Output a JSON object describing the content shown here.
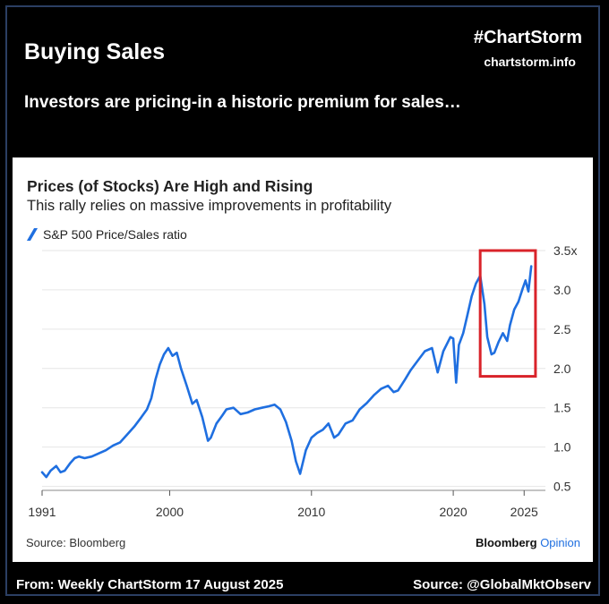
{
  "header": {
    "title": "Buying Sales",
    "tag": "#ChartStorm",
    "site": "chartstorm.info",
    "subtitle": "Investors are pricing-in a historic premium for sales…"
  },
  "footer": {
    "left": "From: Weekly ChartStorm 17 August 2025",
    "right": "Source: @GlobalMktObserv"
  },
  "source_note": "Source: Bloomberg",
  "brand": {
    "name": "Bloomberg",
    "suffix": "Opinion"
  },
  "colors": {
    "line": "#1f6fe0",
    "highlight": "#d9232a",
    "grid": "#e6e6e6"
  },
  "chart_data": {
    "type": "line",
    "title": "Prices (of Stocks) Are High and Rising",
    "subtitle": "This rally relies on massive improvements in profitability",
    "legend": "S&P 500 Price/Sales ratio",
    "xlabel": "",
    "ylabel": "",
    "xlim": [
      1991,
      2026.5
    ],
    "ylim": [
      0.45,
      3.5
    ],
    "y_ticks": [
      {
        "value": 3.5,
        "label": "3.5x"
      },
      {
        "value": 3.0,
        "label": "3.0"
      },
      {
        "value": 2.5,
        "label": "2.5"
      },
      {
        "value": 2.0,
        "label": "2.0"
      },
      {
        "value": 1.5,
        "label": "1.5"
      },
      {
        "value": 1.0,
        "label": "1.0"
      },
      {
        "value": 0.5,
        "label": "0.5"
      }
    ],
    "x_ticks": [
      {
        "value": 1991,
        "label": "1991"
      },
      {
        "value": 2000,
        "label": "2000"
      },
      {
        "value": 2010,
        "label": "2010"
      },
      {
        "value": 2020,
        "label": "2020"
      },
      {
        "value": 2025,
        "label": "2025"
      }
    ],
    "highlight": {
      "x": [
        2021.9,
        2025.8
      ],
      "y": [
        1.9,
        3.5
      ],
      "note": "recent surge highlighted"
    },
    "series": [
      {
        "name": "S&P 500 Price/Sales ratio",
        "x": [
          1991.0,
          1991.3,
          1991.6,
          1992.0,
          1992.3,
          1992.6,
          1993.0,
          1993.3,
          1993.6,
          1994.0,
          1994.5,
          1995.0,
          1995.5,
          1996.0,
          1996.5,
          1997.0,
          1997.5,
          1998.0,
          1998.4,
          1998.7,
          1999.0,
          1999.3,
          1999.6,
          1999.9,
          2000.2,
          2000.5,
          2000.8,
          2001.2,
          2001.6,
          2001.9,
          2002.3,
          2002.7,
          2002.9,
          2003.3,
          2003.7,
          2004.0,
          2004.5,
          2005.0,
          2005.5,
          2006.0,
          2006.5,
          2007.0,
          2007.4,
          2007.8,
          2008.2,
          2008.6,
          2008.9,
          2009.2,
          2009.6,
          2010.0,
          2010.4,
          2010.8,
          2011.2,
          2011.6,
          2011.9,
          2012.4,
          2012.9,
          2013.4,
          2013.9,
          2014.4,
          2014.9,
          2015.4,
          2015.8,
          2016.1,
          2016.6,
          2017.0,
          2017.5,
          2018.0,
          2018.5,
          2018.9,
          2019.3,
          2019.8,
          2020.0,
          2020.2,
          2020.4,
          2020.7,
          2021.0,
          2021.3,
          2021.6,
          2021.9,
          2022.2,
          2022.4,
          2022.7,
          2022.9,
          2023.2,
          2023.5,
          2023.8,
          2024.0,
          2024.3,
          2024.6,
          2024.9,
          2025.1,
          2025.3,
          2025.5
        ],
        "values": [
          0.68,
          0.62,
          0.7,
          0.76,
          0.68,
          0.7,
          0.8,
          0.86,
          0.88,
          0.86,
          0.88,
          0.92,
          0.96,
          1.02,
          1.06,
          1.16,
          1.26,
          1.38,
          1.48,
          1.62,
          1.86,
          2.05,
          2.18,
          2.26,
          2.16,
          2.2,
          2.0,
          1.78,
          1.55,
          1.6,
          1.38,
          1.08,
          1.12,
          1.3,
          1.4,
          1.48,
          1.5,
          1.42,
          1.44,
          1.48,
          1.5,
          1.52,
          1.54,
          1.48,
          1.32,
          1.08,
          0.82,
          0.66,
          0.96,
          1.12,
          1.18,
          1.22,
          1.3,
          1.12,
          1.16,
          1.3,
          1.34,
          1.48,
          1.56,
          1.66,
          1.74,
          1.78,
          1.7,
          1.72,
          1.86,
          1.98,
          2.1,
          2.22,
          2.26,
          1.95,
          2.22,
          2.4,
          2.38,
          1.82,
          2.3,
          2.45,
          2.68,
          2.92,
          3.08,
          3.18,
          2.82,
          2.4,
          2.18,
          2.2,
          2.34,
          2.45,
          2.35,
          2.55,
          2.75,
          2.85,
          3.02,
          3.12,
          2.98,
          3.3
        ]
      }
    ]
  }
}
